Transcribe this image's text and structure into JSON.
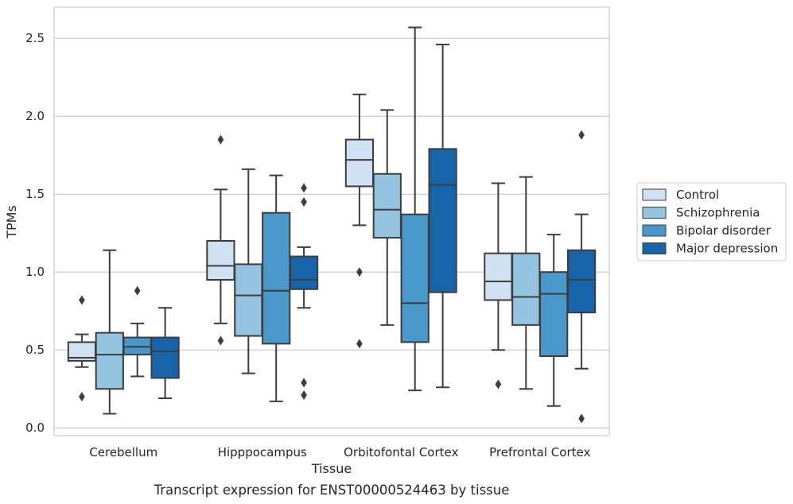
{
  "caption": "Transcript expression for ENST00000524463 by tissue",
  "chart_data": {
    "type": "box",
    "xlabel": "Tissue",
    "ylabel": "TPMs",
    "ylim": [
      -0.05,
      2.7
    ],
    "yticks": [
      "0.0",
      "0.5",
      "1.0",
      "1.5",
      "2.0",
      "2.5"
    ],
    "grid": true,
    "legend_position": "right",
    "categories": [
      "Cerebellum",
      "Hipppocampus",
      "Orbitofontal Cortex",
      "Prefrontal Cortex"
    ],
    "series": [
      {
        "name": "Control",
        "color": "#d0e1f2",
        "boxes": [
          {
            "whislo": 0.39,
            "q1": 0.43,
            "med": 0.45,
            "q3": 0.55,
            "whishi": 0.6,
            "fliers": [
              0.82,
              0.2
            ]
          },
          {
            "whislo": 0.67,
            "q1": 0.95,
            "med": 1.04,
            "q3": 1.2,
            "whishi": 1.53,
            "fliers": [
              1.85,
              0.56
            ]
          },
          {
            "whislo": 1.3,
            "q1": 1.55,
            "med": 1.72,
            "q3": 1.85,
            "whishi": 2.14,
            "fliers": [
              1.0,
              0.54
            ]
          },
          {
            "whislo": 0.5,
            "q1": 0.82,
            "med": 0.94,
            "q3": 1.12,
            "whishi": 1.57,
            "fliers": [
              0.28
            ]
          }
        ]
      },
      {
        "name": "Schizophrenia",
        "color": "#94c4df",
        "boxes": [
          {
            "whislo": 0.09,
            "q1": 0.25,
            "med": 0.47,
            "q3": 0.61,
            "whishi": 1.14,
            "fliers": []
          },
          {
            "whislo": 0.35,
            "q1": 0.59,
            "med": 0.85,
            "q3": 1.05,
            "whishi": 1.66,
            "fliers": []
          },
          {
            "whislo": 0.66,
            "q1": 1.22,
            "med": 1.4,
            "q3": 1.63,
            "whishi": 2.04,
            "fliers": []
          },
          {
            "whislo": 0.25,
            "q1": 0.66,
            "med": 0.84,
            "q3": 1.12,
            "whishi": 1.61,
            "fliers": []
          }
        ]
      },
      {
        "name": "Bipolar disorder",
        "color": "#4a98c9",
        "boxes": [
          {
            "whislo": 0.33,
            "q1": 0.47,
            "med": 0.52,
            "q3": 0.58,
            "whishi": 0.67,
            "fliers": [
              0.88
            ]
          },
          {
            "whislo": 0.17,
            "q1": 0.54,
            "med": 0.88,
            "q3": 1.38,
            "whishi": 1.62,
            "fliers": []
          },
          {
            "whislo": 0.24,
            "q1": 0.55,
            "med": 0.8,
            "q3": 1.37,
            "whishi": 2.57,
            "fliers": []
          },
          {
            "whislo": 0.14,
            "q1": 0.46,
            "med": 0.86,
            "q3": 1.0,
            "whishi": 1.24,
            "fliers": []
          }
        ]
      },
      {
        "name": "Major depression",
        "color": "#1764ab",
        "boxes": [
          {
            "whislo": 0.19,
            "q1": 0.32,
            "med": 0.49,
            "q3": 0.58,
            "whishi": 0.77,
            "fliers": []
          },
          {
            "whislo": 0.77,
            "q1": 0.89,
            "med": 0.95,
            "q3": 1.1,
            "whishi": 1.16,
            "fliers": [
              1.54,
              1.45,
              0.29,
              0.21
            ]
          },
          {
            "whislo": 0.26,
            "q1": 0.87,
            "med": 1.56,
            "q3": 1.79,
            "whishi": 2.46,
            "fliers": []
          },
          {
            "whislo": 0.38,
            "q1": 0.74,
            "med": 0.95,
            "q3": 1.14,
            "whishi": 1.37,
            "fliers": [
              1.88,
              0.06
            ]
          }
        ]
      }
    ]
  }
}
